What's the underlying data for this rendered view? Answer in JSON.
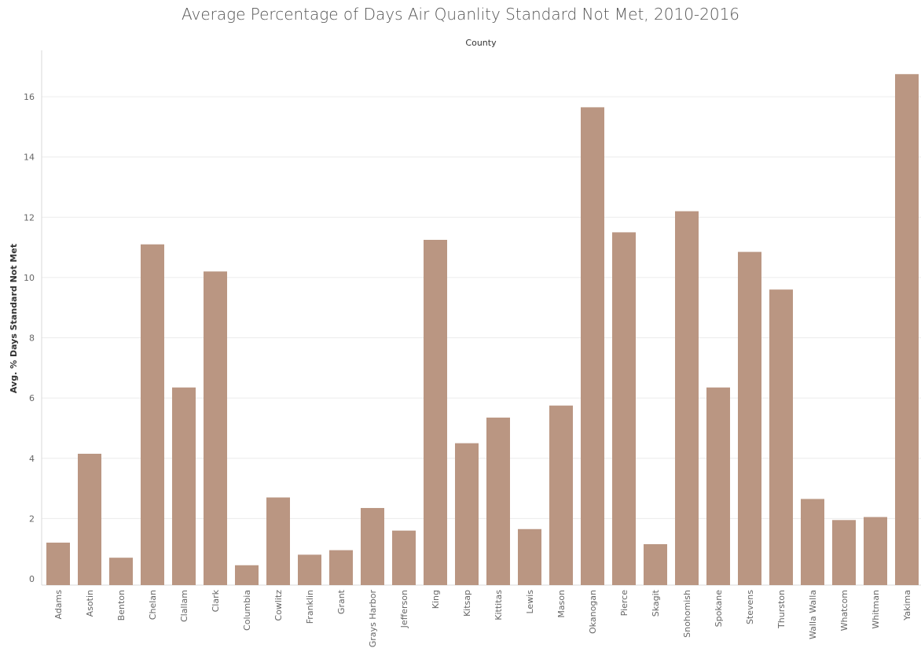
{
  "chart_data": {
    "type": "bar",
    "title": "Average Percentage of Days Air Quanlity Standard Not Met, 2010-2016",
    "column_header": "County",
    "xlabel": "",
    "ylabel": "Avg. % Days Standard Not Met",
    "ylim": [
      0,
      17.5
    ],
    "yticks": [
      0,
      2,
      4,
      6,
      8,
      10,
      12,
      14,
      16
    ],
    "grid": true,
    "bar_color": "#BA9682",
    "categories": [
      "Adams",
      "Asotin",
      "Benton",
      "Chelan",
      "Clallam",
      "Clark",
      "Columbia",
      "Cowlitz",
      "Franklin",
      "Grant",
      "Grays Harbor",
      "Jefferson",
      "King",
      "Kitsap",
      "Kittitas",
      "Lewis",
      "Mason",
      "Okanogan",
      "Pierce",
      "Skagit",
      "Snohomish",
      "Spokane",
      "Stevens",
      "Thurston",
      "Walla Walla",
      "Whatcom",
      "Whitman",
      "Yakima"
    ],
    "values": [
      1.2,
      4.15,
      0.7,
      11.1,
      6.35,
      10.2,
      0.45,
      2.7,
      0.8,
      0.95,
      2.35,
      1.6,
      11.25,
      4.5,
      5.35,
      1.65,
      5.75,
      15.65,
      11.5,
      1.15,
      12.2,
      6.35,
      10.85,
      9.6,
      2.65,
      1.95,
      2.05,
      16.75
    ]
  }
}
